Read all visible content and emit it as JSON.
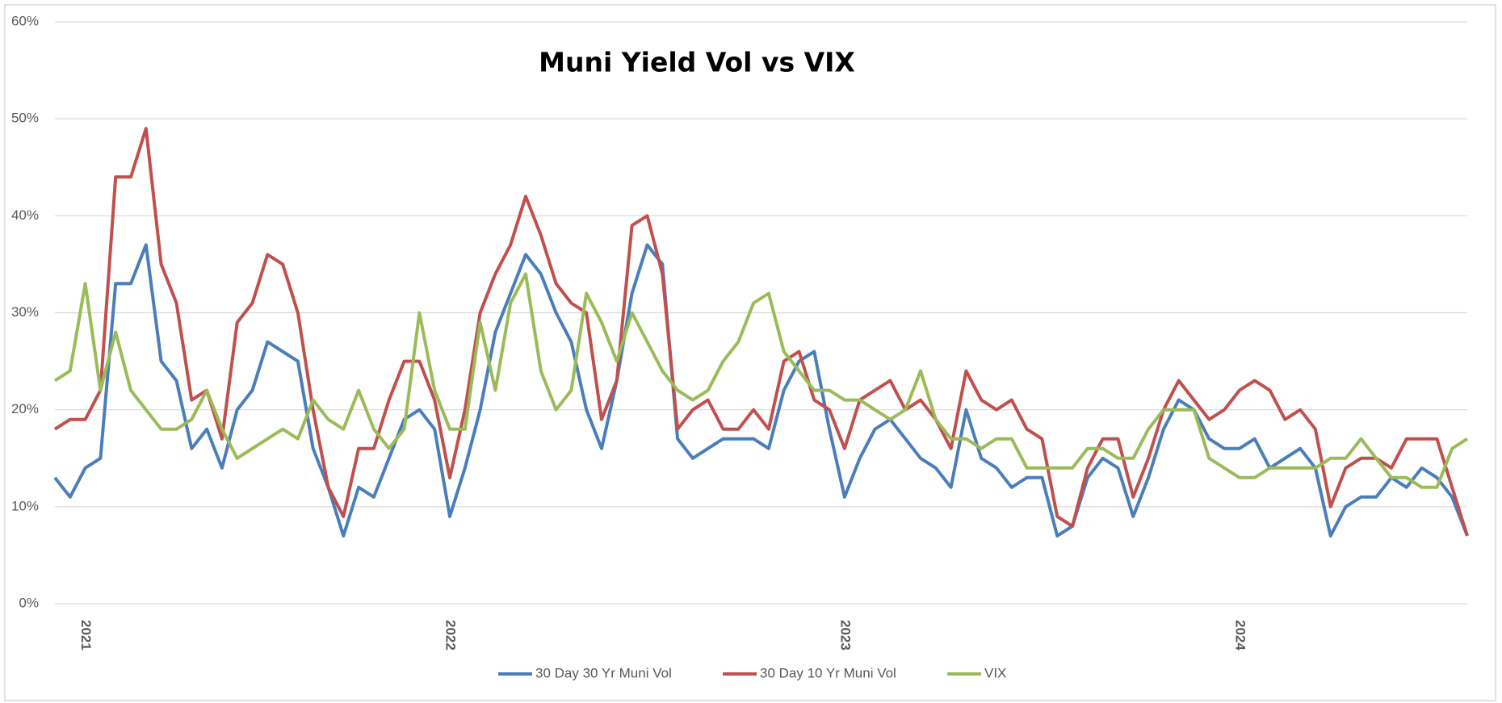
{
  "chart_data": {
    "type": "line",
    "title": "Muni Yield Vol vs VIX",
    "categories": [
      null,
      null,
      "2021",
      null,
      null,
      null,
      null,
      null,
      null,
      null,
      null,
      null,
      null,
      null,
      null,
      null,
      null,
      null,
      null,
      null,
      null,
      null,
      null,
      null,
      null,
      null,
      "2022",
      null,
      null,
      null,
      null,
      null,
      null,
      null,
      null,
      null,
      null,
      null,
      null,
      null,
      null,
      null,
      null,
      null,
      null,
      null,
      null,
      null,
      null,
      null,
      null,
      null,
      "2023",
      null,
      null,
      null,
      null,
      null,
      null,
      null,
      null,
      null,
      null,
      null,
      null,
      null,
      null,
      null,
      null,
      null,
      null,
      null,
      null,
      null,
      null,
      null,
      null,
      null,
      "2024",
      null,
      null,
      null,
      null,
      null,
      null,
      null,
      null,
      null,
      null,
      null,
      null,
      null,
      null,
      null
    ],
    "series": [
      {
        "name": "30 Day 30 Yr Muni Vol",
        "color": "#4a7ebb",
        "values": [
          13,
          11,
          14,
          15,
          33,
          33,
          37,
          25,
          23,
          16,
          18,
          14,
          20,
          22,
          27,
          26,
          25,
          16,
          12,
          7,
          12,
          11,
          15,
          19,
          20,
          18,
          9,
          14,
          20,
          28,
          32,
          36,
          34,
          30,
          27,
          20,
          16,
          23,
          32,
          37,
          35,
          17,
          15,
          16,
          17,
          17,
          17,
          16,
          22,
          25,
          26,
          18,
          11,
          15,
          18,
          19,
          17,
          15,
          14,
          12,
          20,
          15,
          14,
          12,
          13,
          13,
          7,
          8,
          13,
          15,
          14,
          9,
          13,
          18,
          21,
          20,
          17,
          16,
          16,
          17,
          14,
          15,
          16,
          14,
          7,
          10,
          11,
          11,
          13,
          12,
          14,
          13,
          11,
          7
        ]
      },
      {
        "name": "30 Day 10 Yr Muni Vol",
        "color": "#c0504d",
        "values": [
          18,
          19,
          19,
          22,
          44,
          44,
          49,
          35,
          31,
          21,
          22,
          17,
          29,
          31,
          36,
          35,
          30,
          20,
          12,
          9,
          16,
          16,
          21,
          25,
          25,
          21,
          13,
          20,
          30,
          34,
          37,
          42,
          38,
          33,
          31,
          30,
          19,
          23,
          39,
          40,
          34,
          18,
          20,
          21,
          18,
          18,
          20,
          18,
          25,
          26,
          21,
          20,
          16,
          21,
          22,
          23,
          20,
          21,
          19,
          16,
          24,
          21,
          20,
          21,
          18,
          17,
          9,
          8,
          14,
          17,
          17,
          11,
          15,
          20,
          23,
          21,
          19,
          20,
          22,
          23,
          22,
          19,
          20,
          18,
          10,
          14,
          15,
          15,
          14,
          17,
          17,
          17,
          12,
          7
        ]
      },
      {
        "name": "VIX",
        "color": "#9bbb59",
        "values": [
          23,
          24,
          33,
          22,
          28,
          22,
          20,
          18,
          18,
          19,
          22,
          18,
          15,
          16,
          17,
          18,
          17,
          21,
          19,
          18,
          22,
          18,
          16,
          18,
          30,
          22,
          18,
          18,
          29,
          22,
          31,
          34,
          24,
          20,
          22,
          32,
          29,
          25,
          30,
          27,
          24,
          22,
          21,
          22,
          25,
          27,
          31,
          32,
          26,
          24,
          22,
          22,
          21,
          21,
          20,
          19,
          20,
          24,
          19,
          17,
          17,
          16,
          17,
          17,
          14,
          14,
          14,
          14,
          16,
          16,
          15,
          15,
          18,
          20,
          20,
          20,
          15,
          14,
          13,
          13,
          14,
          14,
          14,
          14,
          15,
          15,
          17,
          15,
          13,
          13,
          12,
          12,
          16,
          17
        ]
      }
    ],
    "ylim": [
      0,
      60
    ],
    "yticks": [
      {
        "value": 0,
        "label": "0%"
      },
      {
        "value": 10,
        "label": "10%"
      },
      {
        "value": 20,
        "label": "20%"
      },
      {
        "value": 30,
        "label": "30%"
      },
      {
        "value": 40,
        "label": "40%"
      },
      {
        "value": 50,
        "label": "50%"
      },
      {
        "value": 60,
        "label": "60%"
      }
    ],
    "grid": true,
    "legend": "bottom"
  }
}
